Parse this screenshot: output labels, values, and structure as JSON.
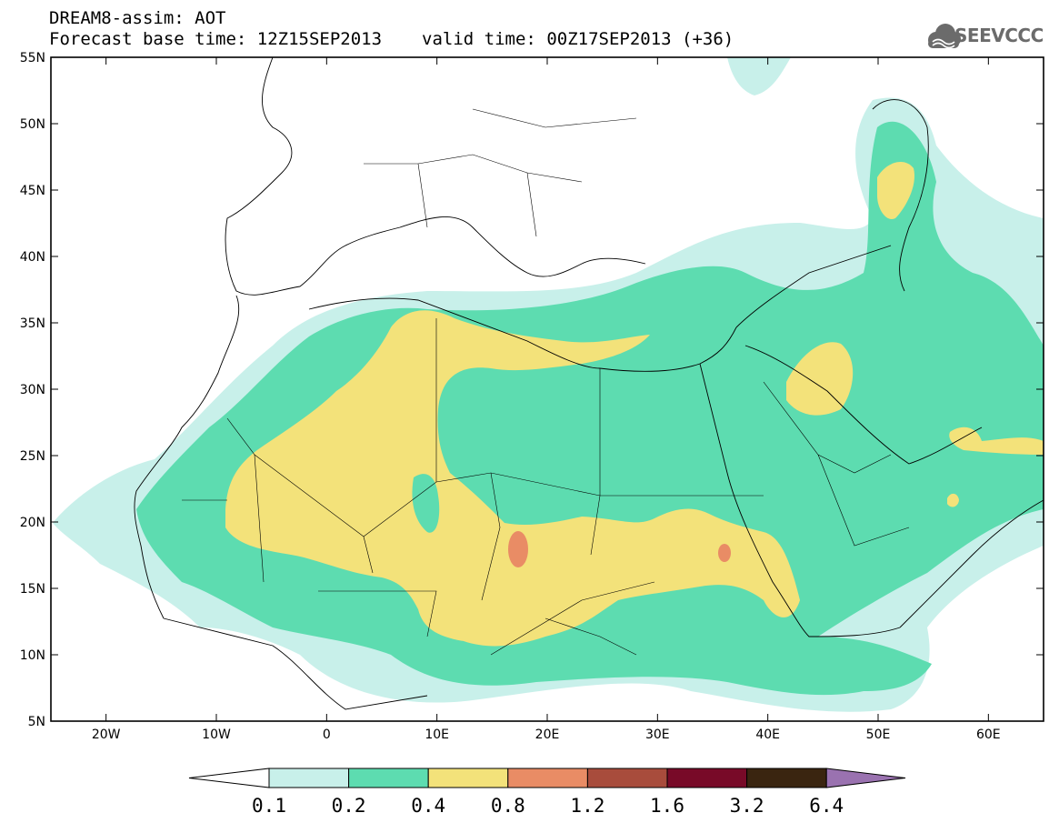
{
  "header": {
    "line1": "DREAM8-assim: AOT",
    "base_time": "Forecast base time: 12Z15SEP2013",
    "valid_time": "valid time: 00Z17SEP2013 (+36)",
    "logo_text": "SEEVCCC",
    "logo_icon": "cloud-icon"
  },
  "map": {
    "lon_range": [
      -25,
      65
    ],
    "lat_range": [
      5,
      55
    ],
    "lon_ticks": [
      {
        "value": -20,
        "label": "20W"
      },
      {
        "value": -10,
        "label": "10W"
      },
      {
        "value": 0,
        "label": "0"
      },
      {
        "value": 10,
        "label": "10E"
      },
      {
        "value": 20,
        "label": "20E"
      },
      {
        "value": 30,
        "label": "30E"
      },
      {
        "value": 40,
        "label": "40E"
      },
      {
        "value": 50,
        "label": "50E"
      },
      {
        "value": 60,
        "label": "60E"
      }
    ],
    "lat_ticks": [
      {
        "value": 55,
        "label": "55N"
      },
      {
        "value": 50,
        "label": "50N"
      },
      {
        "value": 45,
        "label": "45N"
      },
      {
        "value": 40,
        "label": "40N"
      },
      {
        "value": 35,
        "label": "35N"
      },
      {
        "value": 30,
        "label": "30N"
      },
      {
        "value": 25,
        "label": "25N"
      },
      {
        "value": 20,
        "label": "20N"
      },
      {
        "value": 15,
        "label": "15N"
      },
      {
        "value": 10,
        "label": "10N"
      },
      {
        "value": 5,
        "label": "5N"
      }
    ]
  },
  "colorbar": {
    "levels": [
      "0.1",
      "0.2",
      "0.4",
      "0.8",
      "1.2",
      "1.6",
      "3.2",
      "6.4"
    ],
    "colors": [
      "#c8f0ea",
      "#5ddcb0",
      "#f3e27a",
      "#e98c65",
      "#a84c3c",
      "#780a28",
      "#3a2510",
      "#9a72b0"
    ],
    "under_color": "#ffffff"
  }
}
